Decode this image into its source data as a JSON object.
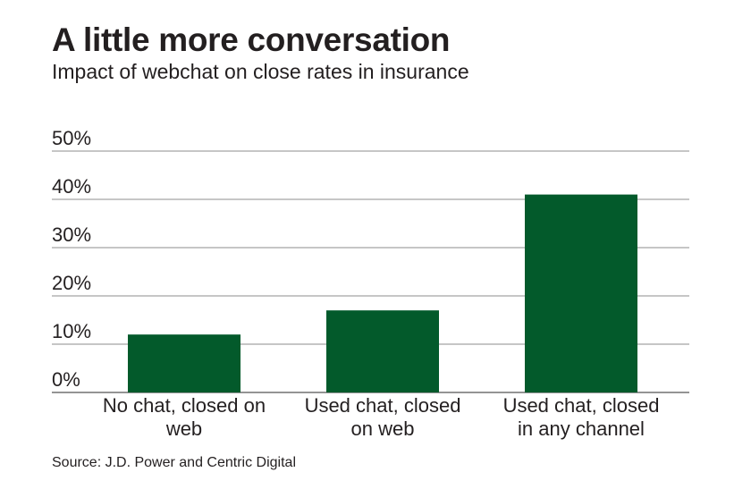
{
  "chart_data": {
    "type": "bar",
    "title": "A little more conversation",
    "subtitle": "Impact of webchat on close rates in insurance",
    "categories": [
      [
        "No chat, closed on",
        "web"
      ],
      [
        "Used chat, closed",
        "on web"
      ],
      [
        "Used chat, closed",
        "in any channel"
      ]
    ],
    "values": [
      12,
      17,
      41
    ],
    "ylim": [
      0,
      50
    ],
    "yticks": [
      0,
      10,
      20,
      30,
      40,
      50
    ],
    "ytick_labels": [
      "0%",
      "10%",
      "20%",
      "30%",
      "40%",
      "50%"
    ],
    "grid": true,
    "bar_color": "#035a2b",
    "source": "Source: J.D. Power and Centric Digital"
  }
}
